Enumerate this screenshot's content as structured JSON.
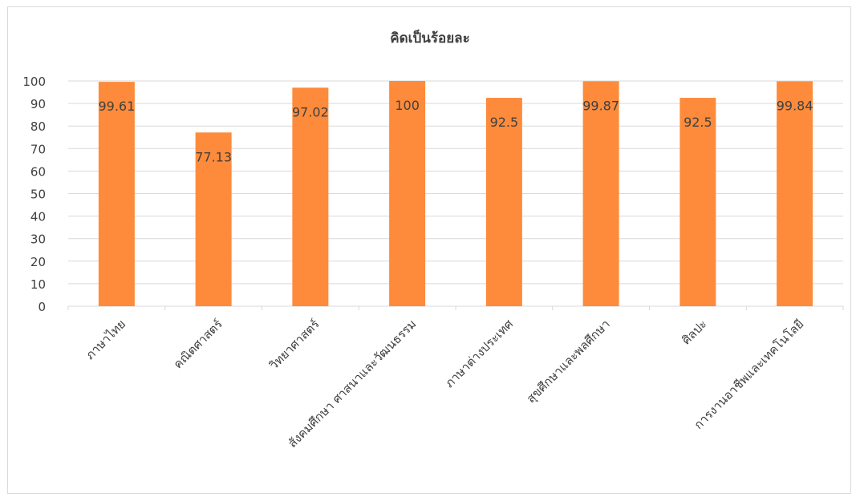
{
  "chart_data": {
    "type": "bar",
    "title": "คิดเป็นร้อยละ",
    "categories": [
      "ภาษาไทย",
      "คณิตศาสตร์",
      "วิทยาศาสตร์",
      "สังคมศึกษา ศาสนาและวัฒนธรรม",
      "ภาษาต่างประเทศ",
      "สุขศึกษาและพลศึกษา",
      "ศิลปะ",
      "การงานอาชีพและเทคโนโลยี"
    ],
    "values": [
      99.61,
      77.13,
      97.02,
      100,
      92.5,
      99.87,
      92.5,
      99.84
    ],
    "data_labels": [
      "99.61",
      "77.13",
      "97.02",
      "100",
      "92.5",
      "99.87",
      "92.5",
      "99.84"
    ],
    "ylim": [
      0,
      100
    ],
    "yticks": [
      0,
      10,
      20,
      30,
      40,
      50,
      60,
      70,
      80,
      90,
      100
    ],
    "xlabel": "",
    "ylabel": "",
    "grid": true,
    "legend": "none",
    "colors": {
      "bar": "#fe8b3b",
      "grid": "#d9d9d9",
      "text": "#404040"
    }
  }
}
